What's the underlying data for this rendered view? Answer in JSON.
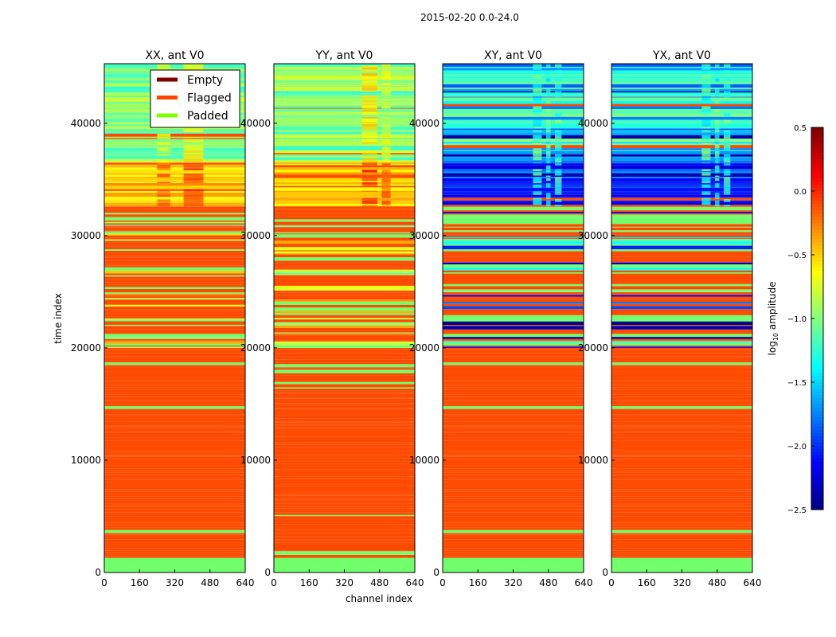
{
  "chart_data": {
    "type": "heatmap",
    "title": "2015-02-20 0.0-24.0",
    "xlabel": "channel index",
    "ylabel": "time index",
    "xlim": [
      0,
      640
    ],
    "ylim": [
      0,
      45300
    ],
    "xticks": [
      "0",
      "160",
      "320",
      "480",
      "640"
    ],
    "xtick_values": [
      0,
      160,
      320,
      480,
      640
    ],
    "yticks": [
      "0",
      "10000",
      "20000",
      "30000",
      "40000"
    ],
    "ytick_values": [
      0,
      10000,
      20000,
      30000,
      40000
    ],
    "colorbar": {
      "label": "log10 amplitude",
      "label_main": "log",
      "label_sub": "10",
      "label_rest": " amplitude",
      "range": [
        -2.5,
        0.5
      ],
      "ticks": [
        "0.5",
        "0.0",
        "−0.5",
        "−1.0",
        "−1.5",
        "−2.0",
        "−2.5"
      ],
      "tick_values": [
        0.5,
        0.0,
        -0.5,
        -1.0,
        -1.5,
        -2.0,
        -2.5
      ],
      "colormap": "jet"
    },
    "legend": {
      "placement": "top-right of first panel",
      "entries": [
        {
          "label": "Empty",
          "color": "#800000"
        },
        {
          "label": "Flagged",
          "color": "#ff4500"
        },
        {
          "label": "Padded",
          "color": "#7fff00"
        }
      ]
    },
    "special_colors": {
      "flagged": "#ff4a00",
      "padded": "#72ff6c"
    },
    "panels": [
      {
        "title": "XX, ant V0",
        "kind": "parallel",
        "bands": [
          [
            0,
            1300,
            "P",
            0
          ],
          [
            1300,
            20000,
            "F",
            0.08
          ],
          [
            20000,
            32600,
            "F",
            0.35,
            -0.7
          ],
          [
            32600,
            36500,
            -0.45,
            0.2
          ],
          [
            36500,
            45300,
            -1.0,
            0.25
          ]
        ],
        "hot_columns": [
          [
            360,
            450,
            0.25
          ],
          [
            240,
            300,
            0.1
          ]
        ]
      },
      {
        "title": "YY, ant V0",
        "kind": "parallel",
        "bands": [
          [
            0,
            1300,
            "P",
            0
          ],
          [
            1300,
            20000,
            "F",
            0.08
          ],
          [
            20000,
            32600,
            "F",
            0.35,
            -0.7
          ],
          [
            32600,
            36500,
            -0.45,
            0.2
          ],
          [
            36500,
            45300,
            -1.0,
            0.25
          ]
        ],
        "hot_columns": [
          [
            400,
            470,
            0.3
          ],
          [
            490,
            530,
            0.15
          ]
        ]
      },
      {
        "title": "XY, ant V0",
        "kind": "cross",
        "bands": [
          [
            0,
            1300,
            "P",
            0
          ],
          [
            1300,
            20000,
            "F",
            0.1
          ],
          [
            20000,
            32600,
            "F",
            0.45,
            -1.8
          ],
          [
            32600,
            36500,
            -2.0,
            0.3
          ],
          [
            36500,
            45300,
            -1.4,
            0.5
          ]
        ],
        "hot_columns": [
          [
            410,
            450,
            0.6
          ],
          [
            470,
            490,
            0.6
          ],
          [
            510,
            540,
            0.5
          ]
        ]
      },
      {
        "title": "YX, ant V0",
        "kind": "cross",
        "bands": [
          [
            0,
            1300,
            "P",
            0
          ],
          [
            1300,
            20000,
            "F",
            0.1
          ],
          [
            20000,
            32600,
            "F",
            0.45,
            -1.8
          ],
          [
            32600,
            36500,
            -2.0,
            0.3
          ],
          [
            36500,
            45300,
            -1.4,
            0.5
          ]
        ],
        "hot_columns": [
          [
            410,
            450,
            0.6
          ],
          [
            470,
            490,
            0.6
          ],
          [
            510,
            540,
            0.5
          ]
        ]
      }
    ]
  }
}
